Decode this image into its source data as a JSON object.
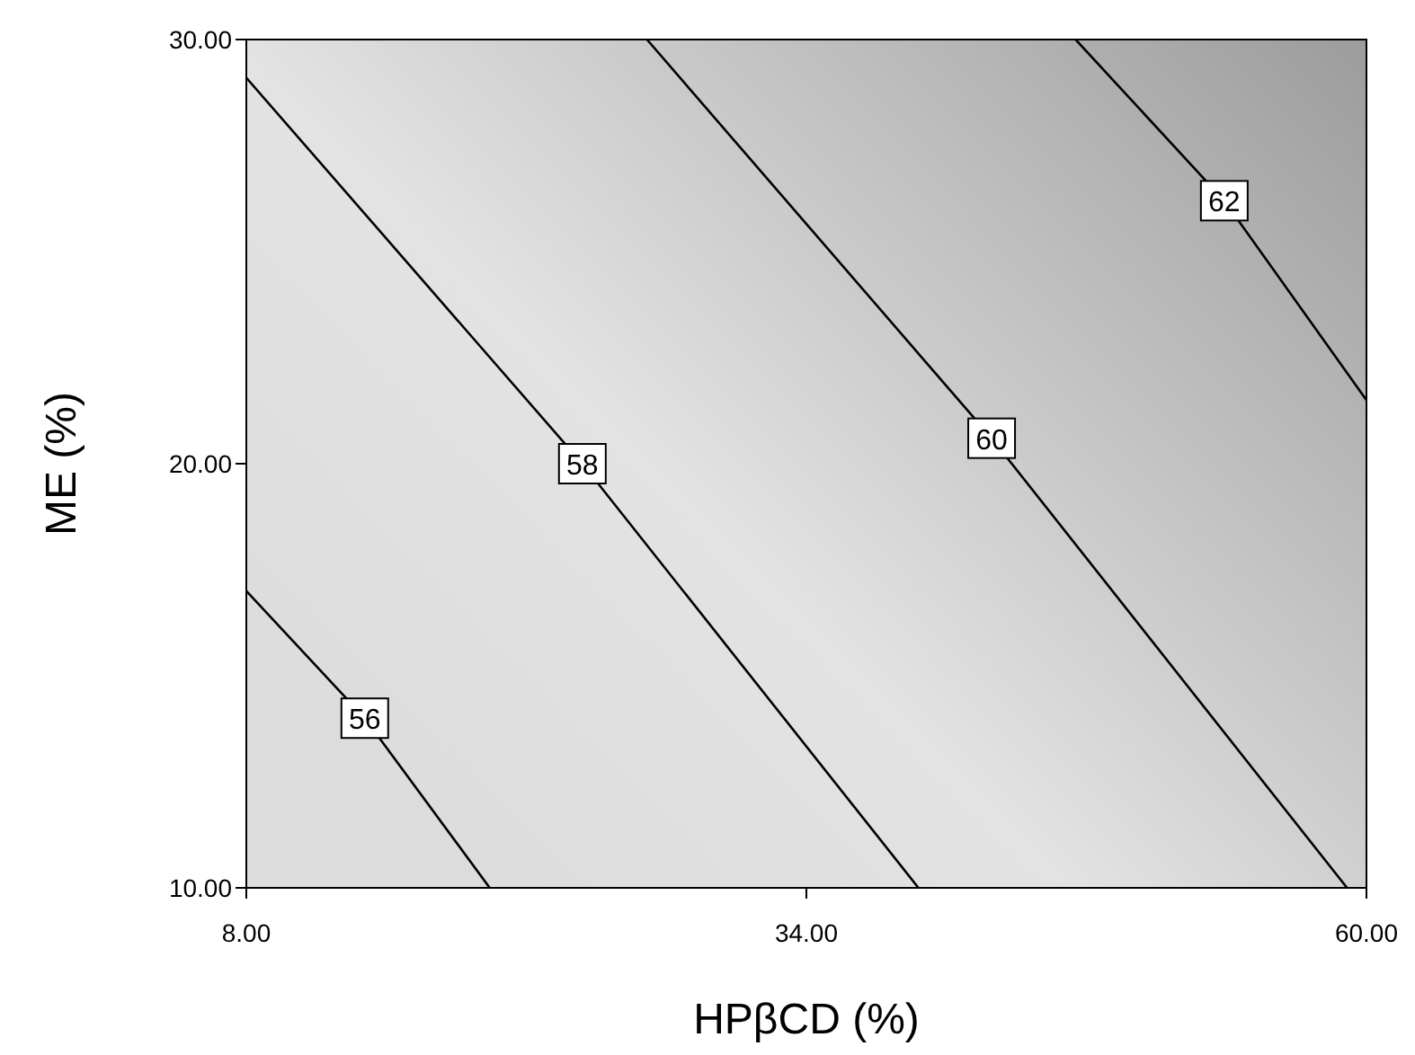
{
  "chart_data": {
    "type": "line",
    "xlabel": "HPβCD (%)",
    "ylabel": "ME (%)",
    "xlim": [
      8,
      60
    ],
    "ylim": [
      10,
      30
    ],
    "xticks": [
      {
        "value": 8,
        "label": "8.00"
      },
      {
        "value": 34,
        "label": "34.00"
      },
      {
        "value": 60,
        "label": "60.00"
      }
    ],
    "yticks": [
      {
        "value": 10,
        "label": "10.00"
      },
      {
        "value": 20,
        "label": "20.00"
      },
      {
        "value": 30,
        "label": "30.00"
      }
    ],
    "grid": false,
    "legend": false,
    "marker": "none",
    "line_style": "solid",
    "series": [
      {
        "name": "56",
        "color": "#000000",
        "x": [
          8,
          13.5,
          19.3
        ],
        "values": [
          17.0,
          14.0,
          10
        ]
      },
      {
        "name": "58",
        "color": "#000000",
        "x": [
          8,
          23.6,
          39.2
        ],
        "values": [
          29.1,
          20.0,
          10
        ]
      },
      {
        "name": "60",
        "color": "#000000",
        "x": [
          26.6,
          42.6,
          59.1
        ],
        "values": [
          30,
          20.6,
          10
        ]
      },
      {
        "name": "62",
        "color": "#000000",
        "x": [
          46.5,
          53.4,
          60
        ],
        "values": [
          30,
          26.2,
          21.5
        ]
      }
    ]
  }
}
